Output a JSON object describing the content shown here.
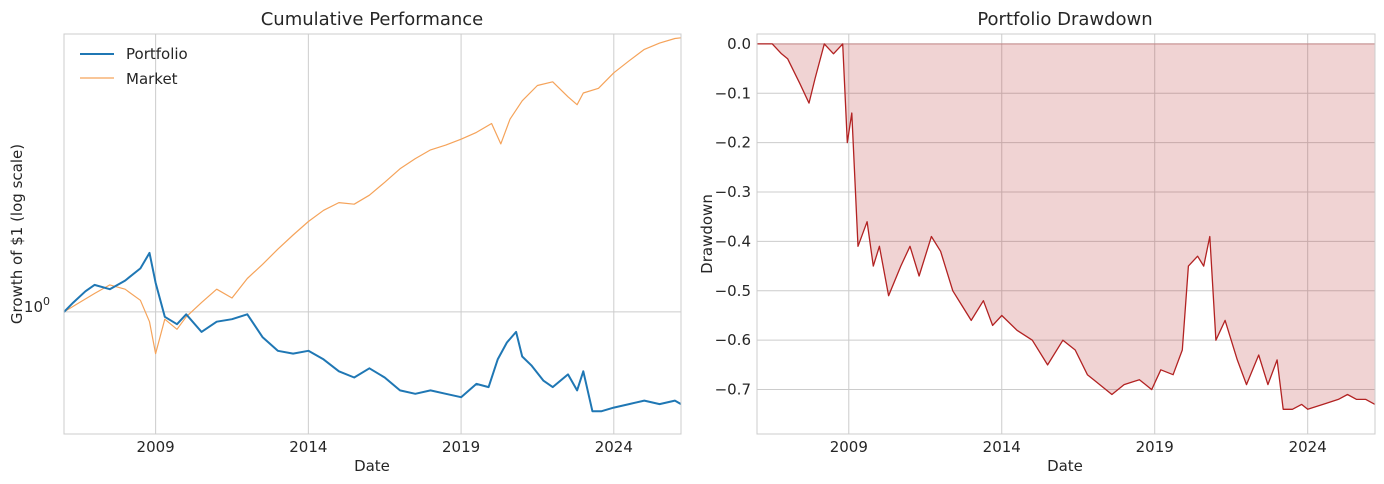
{
  "colors": {
    "portfolio": "#1f77b4",
    "market": "#f5a35a",
    "drawdown_line": "#b22222",
    "drawdown_fill": "#b22222",
    "grid": "#cccccc"
  },
  "chart_data": [
    {
      "type": "line",
      "title": "Cumulative Performance",
      "xlabel": "Date",
      "ylabel": "Growth of $1 (log scale)",
      "yscale": "log",
      "xlim": [
        2006.0,
        2026.2
      ],
      "ylim": [
        0.6,
        3.2
      ],
      "x_ticks": [
        2009,
        2014,
        2019,
        2024
      ],
      "x_tick_labels": [
        "2009",
        "2014",
        "2019",
        "2024"
      ],
      "y_tick_label": {
        "base": "10",
        "exp": "0",
        "value": 1.0
      },
      "legend": {
        "position": "top-left",
        "entries": [
          "Portfolio",
          "Market"
        ]
      },
      "series": [
        {
          "name": "Portfolio",
          "x": [
            2006.0,
            2006.3,
            2006.7,
            2007.0,
            2007.5,
            2008.0,
            2008.5,
            2008.8,
            2009.0,
            2009.3,
            2009.7,
            2010.0,
            2010.5,
            2011.0,
            2011.5,
            2012.0,
            2012.5,
            2013.0,
            2013.5,
            2014.0,
            2014.5,
            2015.0,
            2015.5,
            2016.0,
            2016.5,
            2017.0,
            2017.5,
            2018.0,
            2018.5,
            2019.0,
            2019.5,
            2019.9,
            2020.2,
            2020.5,
            2020.8,
            2021.0,
            2021.3,
            2021.7,
            2022.0,
            2022.5,
            2022.8,
            2023.0,
            2023.3,
            2023.6,
            2024.0,
            2024.5,
            2025.0,
            2025.5,
            2026.0,
            2026.2
          ],
          "values": [
            1.0,
            1.04,
            1.09,
            1.12,
            1.1,
            1.14,
            1.2,
            1.28,
            1.13,
            0.98,
            0.95,
            0.99,
            0.92,
            0.96,
            0.97,
            0.99,
            0.9,
            0.85,
            0.84,
            0.85,
            0.82,
            0.78,
            0.76,
            0.79,
            0.76,
            0.72,
            0.71,
            0.72,
            0.71,
            0.7,
            0.74,
            0.73,
            0.82,
            0.88,
            0.92,
            0.83,
            0.8,
            0.75,
            0.73,
            0.77,
            0.72,
            0.78,
            0.66,
            0.66,
            0.67,
            0.68,
            0.69,
            0.68,
            0.69,
            0.68
          ]
        },
        {
          "name": "Market",
          "x": [
            2006.0,
            2006.5,
            2007.0,
            2007.5,
            2008.0,
            2008.5,
            2008.8,
            2009.0,
            2009.3,
            2009.7,
            2010.0,
            2010.5,
            2011.0,
            2011.5,
            2012.0,
            2012.5,
            2013.0,
            2013.5,
            2014.0,
            2014.5,
            2015.0,
            2015.5,
            2016.0,
            2016.5,
            2017.0,
            2017.5,
            2018.0,
            2018.5,
            2019.0,
            2019.5,
            2020.0,
            2020.3,
            2020.6,
            2021.0,
            2021.5,
            2022.0,
            2022.5,
            2022.8,
            2023.0,
            2023.5,
            2024.0,
            2024.5,
            2025.0,
            2025.5,
            2026.0,
            2026.2
          ],
          "values": [
            1.0,
            1.04,
            1.08,
            1.12,
            1.1,
            1.05,
            0.96,
            0.84,
            0.97,
            0.93,
            0.98,
            1.04,
            1.1,
            1.06,
            1.15,
            1.22,
            1.3,
            1.38,
            1.46,
            1.53,
            1.58,
            1.57,
            1.63,
            1.72,
            1.82,
            1.9,
            1.97,
            2.01,
            2.06,
            2.12,
            2.2,
            2.02,
            2.24,
            2.42,
            2.58,
            2.62,
            2.46,
            2.38,
            2.5,
            2.55,
            2.72,
            2.86,
            3.0,
            3.08,
            3.14,
            3.15
          ]
        }
      ]
    },
    {
      "type": "area",
      "title": "Portfolio Drawdown",
      "xlabel": "Date",
      "ylabel": "Drawdown",
      "xlim": [
        2006.0,
        2026.2
      ],
      "ylim": [
        -0.79,
        0.02
      ],
      "x_ticks": [
        2009,
        2014,
        2019,
        2024
      ],
      "x_tick_labels": [
        "2009",
        "2014",
        "2019",
        "2024"
      ],
      "y_ticks": [
        0.0,
        -0.1,
        -0.2,
        -0.3,
        -0.4,
        -0.5,
        -0.6,
        -0.7
      ],
      "y_tick_labels": [
        "0.0",
        "−0.1",
        "−0.2",
        "−0.3",
        "−0.4",
        "−0.5",
        "−0.6",
        "−0.7"
      ],
      "series": [
        {
          "name": "Drawdown",
          "x": [
            2006.0,
            2006.5,
            2006.8,
            2007.0,
            2007.4,
            2007.7,
            2007.9,
            2008.2,
            2008.5,
            2008.8,
            2008.95,
            2009.1,
            2009.3,
            2009.6,
            2009.8,
            2010.0,
            2010.3,
            2010.7,
            2011.0,
            2011.3,
            2011.7,
            2012.0,
            2012.4,
            2012.7,
            2013.0,
            2013.4,
            2013.7,
            2014.0,
            2014.5,
            2015.0,
            2015.5,
            2016.0,
            2016.4,
            2016.8,
            2017.2,
            2017.6,
            2018.0,
            2018.5,
            2018.9,
            2019.2,
            2019.6,
            2019.9,
            2020.1,
            2020.4,
            2020.6,
            2020.8,
            2021.0,
            2021.3,
            2021.7,
            2022.0,
            2022.4,
            2022.7,
            2023.0,
            2023.2,
            2023.5,
            2023.8,
            2024.0,
            2024.5,
            2025.0,
            2025.3,
            2025.6,
            2025.9,
            2026.2
          ],
          "values": [
            0.0,
            0.0,
            -0.02,
            -0.03,
            -0.08,
            -0.12,
            -0.07,
            0.0,
            -0.02,
            0.0,
            -0.2,
            -0.14,
            -0.41,
            -0.36,
            -0.45,
            -0.41,
            -0.51,
            -0.45,
            -0.41,
            -0.47,
            -0.39,
            -0.42,
            -0.5,
            -0.53,
            -0.56,
            -0.52,
            -0.57,
            -0.55,
            -0.58,
            -0.6,
            -0.65,
            -0.6,
            -0.62,
            -0.67,
            -0.69,
            -0.71,
            -0.69,
            -0.68,
            -0.7,
            -0.66,
            -0.67,
            -0.62,
            -0.45,
            -0.43,
            -0.45,
            -0.39,
            -0.6,
            -0.56,
            -0.64,
            -0.69,
            -0.63,
            -0.69,
            -0.64,
            -0.74,
            -0.74,
            -0.73,
            -0.74,
            -0.73,
            -0.72,
            -0.71,
            -0.72,
            -0.72,
            -0.73
          ]
        }
      ]
    }
  ]
}
